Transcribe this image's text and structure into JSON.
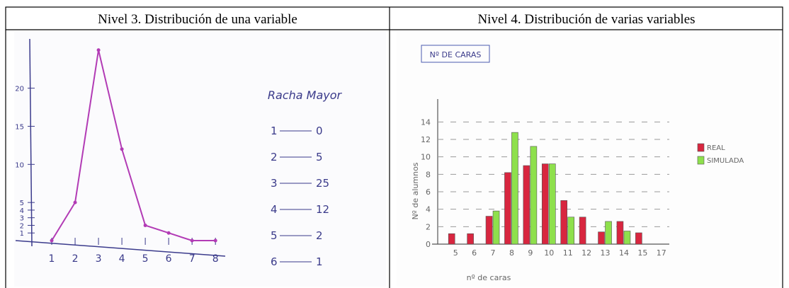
{
  "table": {
    "headers": [
      "Nivel 3. Distribución de una variable",
      "Nivel 4. Distribución de varias variables"
    ]
  },
  "left": {
    "type": "line",
    "color": "#b23bb5",
    "axis_color": "#3b3b8c",
    "x": [
      1,
      2,
      3,
      4,
      5,
      6,
      7,
      8
    ],
    "xticks": [
      1,
      2,
      3,
      4,
      5,
      6,
      7,
      8
    ],
    "xlim": [
      0,
      8.6
    ],
    "values": [
      0,
      5,
      25,
      12,
      2,
      1,
      0,
      0
    ],
    "ylim": [
      0,
      26
    ],
    "yticks": [
      1,
      2,
      3,
      4,
      5,
      10,
      15,
      20
    ],
    "note": {
      "title": "Racha Mayor",
      "rows": [
        [
          "1",
          "0"
        ],
        [
          "2",
          "5"
        ],
        [
          "3",
          "25"
        ],
        [
          "4",
          "12"
        ],
        [
          "5",
          "2"
        ],
        [
          "6",
          "1"
        ]
      ]
    }
  },
  "right": {
    "type": "bar",
    "title": "Nº DE CARAS",
    "ylabel": "Nº de alumnos",
    "xlabel": "nº de caras",
    "categories": [
      "5",
      "6",
      "7",
      "8",
      "9",
      "10",
      "11",
      "12",
      "13",
      "14",
      "15",
      "17"
    ],
    "series": [
      {
        "name": "REAL",
        "color": "#d8263f",
        "values": [
          1.2,
          1.2,
          3.2,
          8.2,
          9,
          9.2,
          5,
          3.1,
          1.4,
          2.6,
          1.3,
          null
        ]
      },
      {
        "name": "SIMULADA",
        "color": "#8ee04c",
        "values": [
          null,
          null,
          3.8,
          12.8,
          11.2,
          9.2,
          3.1,
          null,
          2.6,
          1.5,
          null,
          null
        ]
      }
    ],
    "ylim": [
      0,
      15
    ],
    "yticks": [
      0,
      2,
      4,
      6,
      8,
      10,
      12,
      14
    ],
    "grid": true
  }
}
